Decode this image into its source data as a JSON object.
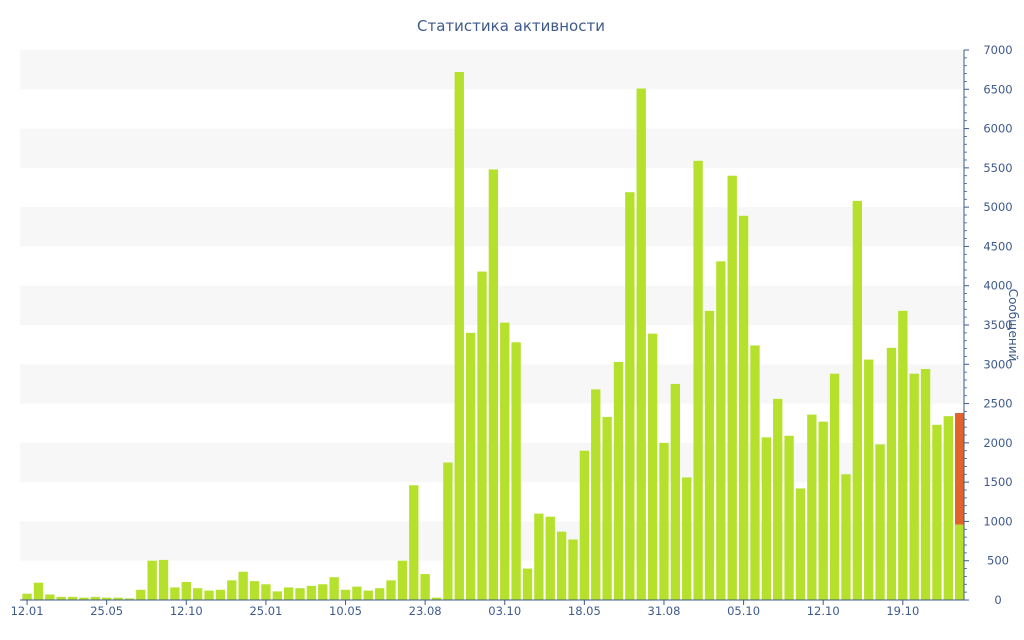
{
  "chart_data": {
    "type": "bar",
    "title": "Статистика активности",
    "ylabel": "Сообщений",
    "ylim": [
      0,
      7000
    ],
    "y_ticks": [
      0,
      500,
      1000,
      1500,
      2000,
      2500,
      3000,
      3500,
      4000,
      4500,
      5000,
      5500,
      6000,
      6500,
      7000
    ],
    "x_tick_labels": [
      "12.01",
      "25.05",
      "12.10",
      "25.01",
      "10.05",
      "23.08",
      "03.10",
      "18.05",
      "31.08",
      "05.10",
      "12.10",
      "19.10"
    ],
    "x_tick_indices": [
      0,
      7,
      14,
      21,
      28,
      35,
      42,
      49,
      56,
      63,
      70,
      77
    ],
    "y_axis_side": "right",
    "grid": "horizontal-bands",
    "colors": {
      "bar": "#b5e02c",
      "highlight": "#e2622b",
      "text": "#3e5a8c",
      "band": "#f7f7f7"
    },
    "values": [
      80,
      220,
      70,
      40,
      40,
      30,
      40,
      30,
      30,
      20,
      130,
      500,
      510,
      160,
      230,
      150,
      120,
      130,
      250,
      360,
      240,
      200,
      110,
      160,
      150,
      180,
      200,
      290,
      130,
      170,
      120,
      150,
      250,
      500,
      1460,
      330,
      30,
      1750,
      6720,
      3400,
      4180,
      5480,
      3530,
      3280,
      400,
      1100,
      1060,
      870,
      770,
      1900,
      2680,
      2330,
      3030,
      5190,
      6510,
      3390,
      2000,
      2750,
      1560,
      5590,
      3680,
      4310,
      5400,
      4890,
      3240,
      2070,
      2560,
      2090,
      1420,
      2360,
      2270,
      2880,
      1600,
      5080,
      3060,
      1980,
      3210,
      3680,
      2880,
      2940,
      2230,
      2340,
      960
    ],
    "highlight": {
      "index": 82,
      "base": 960,
      "extra_to": 2380
    }
  }
}
